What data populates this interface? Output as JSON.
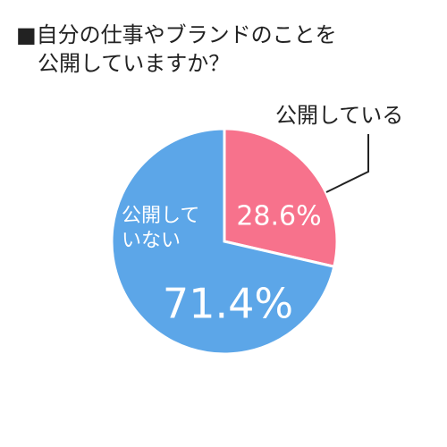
{
  "chart_data": {
    "type": "pie",
    "title": [
      "■自分の仕事やブランドのことを",
      "公開していますか？"
    ],
    "categories": [
      "公開している",
      "公開していない"
    ],
    "values": [
      28.6,
      71.4
    ],
    "value_labels": [
      "28.6%",
      "71.4%"
    ],
    "colors": [
      "#f7728c",
      "#5ca6e8"
    ]
  }
}
